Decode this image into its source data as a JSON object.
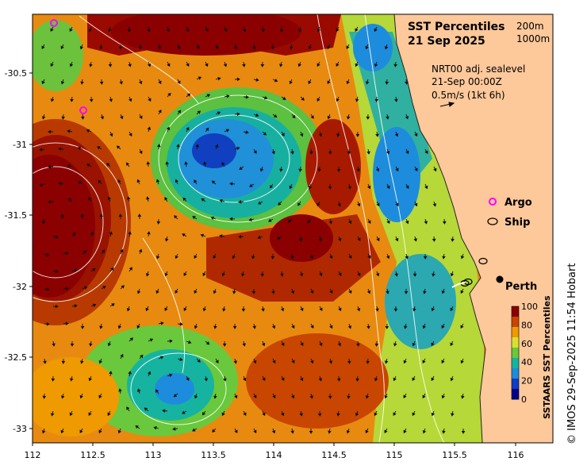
{
  "map": {
    "title": "SST Percentiles",
    "date": "21 Sep 2025",
    "contour_legend": [
      "200m",
      "1000m"
    ],
    "current_info": [
      "NRT00 adj. sealevel",
      "21-Sep 00:00Z",
      "0.5m/s (1kt 6h)"
    ],
    "x_ticks": [
      "112",
      "112.5",
      "113",
      "113.5",
      "114",
      "114.5",
      "115",
      "115.5",
      "116"
    ],
    "y_ticks": [
      "-30.5",
      "-31",
      "-31.5",
      "-32",
      "-32.5",
      "-33"
    ],
    "legend_items": [
      {
        "label": "Argo",
        "color": "#ff00ff"
      },
      {
        "label": "Ship",
        "color": "#000000"
      }
    ],
    "place_label": "Perth",
    "colorbar": {
      "label": "SSTAARS SST Percentiles",
      "ticks": [
        "100",
        "80",
        "60",
        "40",
        "20",
        "0"
      ],
      "colors": [
        "#8b0000",
        "#c84600",
        "#ee9a00",
        "#d8e030",
        "#69c83c",
        "#16b4a0",
        "#1e8cdc",
        "#0f3cc8",
        "#00008b"
      ]
    },
    "credit": "© IMOS 29-Sep-2025 11:54 Hobart",
    "colors": {
      "land": "#fdc89a",
      "coast": "#222222",
      "contour": "#ffffff"
    }
  }
}
